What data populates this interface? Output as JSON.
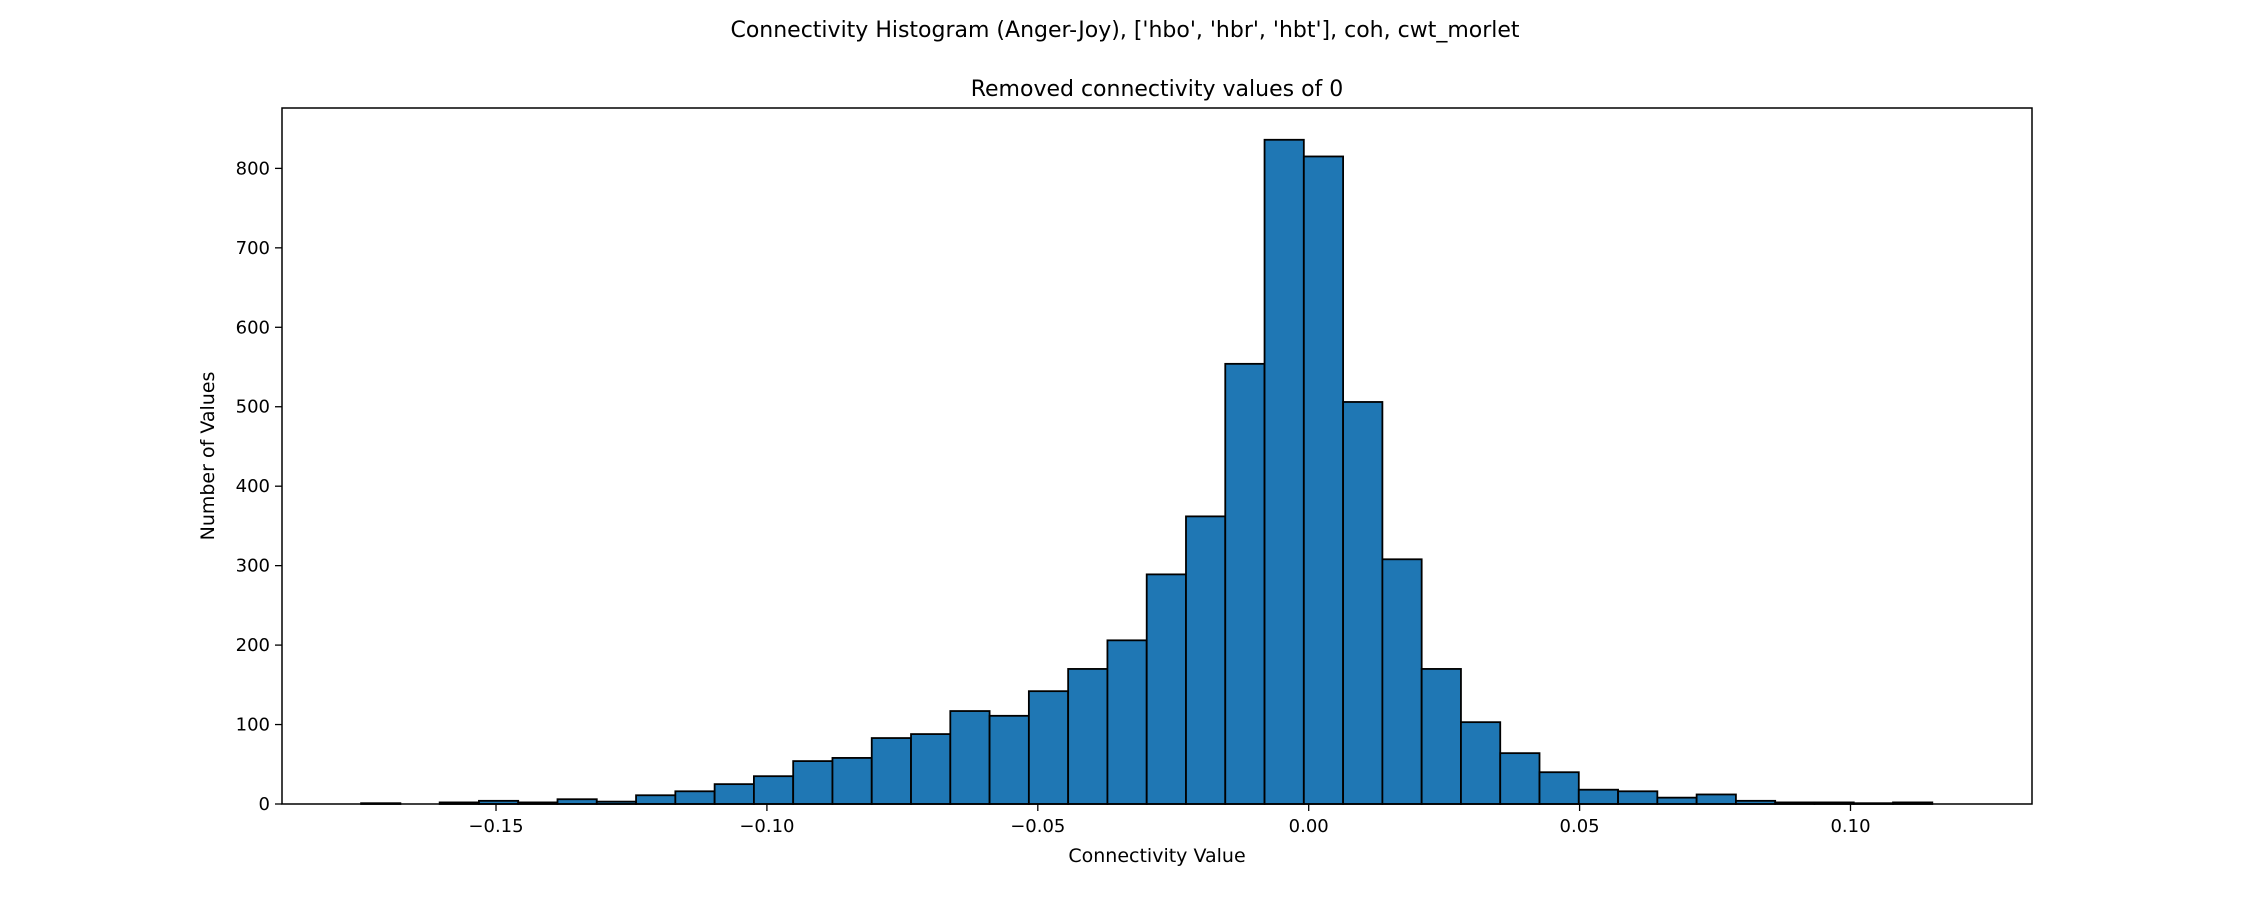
{
  "figure": {
    "suptitle": "Connectivity Histogram (Anger-Joy), ['hbo', 'hbr', 'hbt'], coh, cwt_morlet"
  },
  "chart_data": {
    "type": "bar",
    "title": "Removed connectivity values of 0",
    "xlabel": "Connectivity Value",
    "ylabel": "Number of Values",
    "xlim": [
      -0.1895,
      0.1335
    ],
    "ylim": [
      0,
      876
    ],
    "xticks": [
      -0.15,
      -0.1,
      -0.05,
      0.0,
      0.05,
      0.1
    ],
    "xtick_labels": [
      "−0.15",
      "−0.10",
      "−0.05",
      "0.00",
      "0.05",
      "0.10"
    ],
    "yticks": [
      0,
      100,
      200,
      300,
      400,
      500,
      600,
      700,
      800
    ],
    "ytick_labels": [
      "0",
      "100",
      "200",
      "300",
      "400",
      "500",
      "600",
      "700",
      "800"
    ],
    "grid": false,
    "legend": false,
    "colors": {
      "bar_fill": "#1f77b4",
      "bar_edge": "#000000",
      "axes": "#000000"
    },
    "bin_edges": [
      -0.1749,
      -0.16765,
      -0.1604,
      -0.15315,
      -0.1459,
      -0.13865,
      -0.1314,
      -0.12415,
      -0.1169,
      -0.10965,
      -0.1024,
      -0.09515,
      -0.0879,
      -0.08065,
      -0.0734,
      -0.06615,
      -0.0589,
      -0.05165,
      -0.0444,
      -0.03715,
      -0.0299,
      -0.02265,
      -0.0154,
      -0.00815,
      -0.0009,
      0.00635,
      0.0136,
      0.02085,
      0.0281,
      0.03535,
      0.0426,
      0.04985,
      0.0571,
      0.06435,
      0.0716,
      0.07885,
      0.0861,
      0.09335,
      0.1006,
      0.10785,
      0.1151,
      0.12235
    ],
    "counts": [
      1,
      0,
      2,
      4,
      2,
      6,
      3,
      11,
      16,
      25,
      35,
      54,
      58,
      83,
      88,
      117,
      111,
      142,
      170,
      206,
      289,
      362,
      554,
      836,
      815,
      506,
      308,
      170,
      103,
      64,
      40,
      18,
      16,
      8,
      12,
      4,
      2,
      2,
      1,
      2,
      0
    ]
  }
}
